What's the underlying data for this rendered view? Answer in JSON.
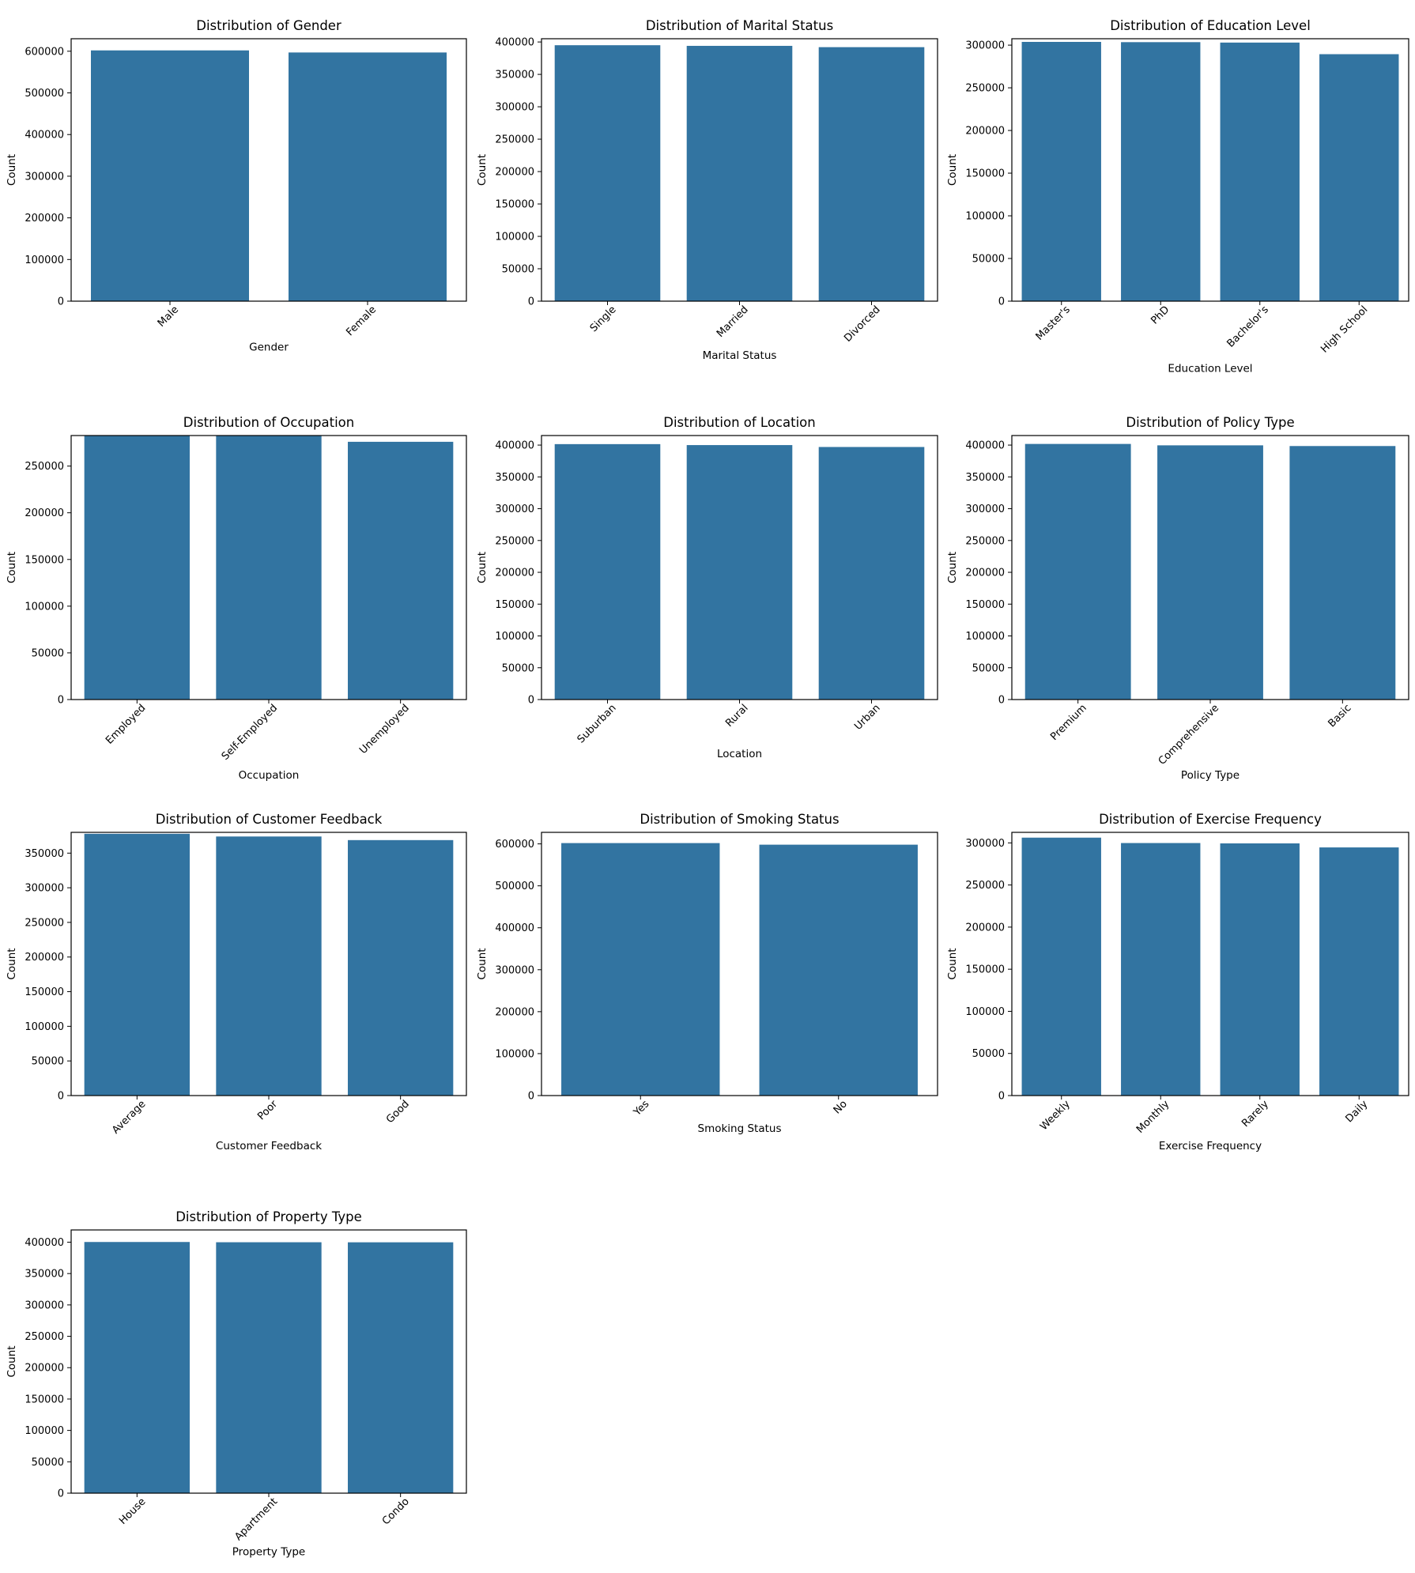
{
  "chart_data": [
    {
      "type": "bar",
      "title": "Distribution of Gender",
      "xlabel": "Gender",
      "ylabel": "Count",
      "categories": [
        "Male",
        "Female"
      ],
      "values": [
        602000,
        597000
      ],
      "ylim": [
        0,
        630000
      ],
      "yticks": [
        0,
        100000,
        200000,
        300000,
        400000,
        500000,
        600000
      ]
    },
    {
      "type": "bar",
      "title": "Distribution of Marital Status",
      "xlabel": "Marital Status",
      "ylabel": "Count",
      "categories": [
        "Single",
        "Married",
        "Divorced"
      ],
      "values": [
        395000,
        394000,
        392000
      ],
      "ylim": [
        0,
        405000
      ],
      "yticks": [
        0,
        50000,
        100000,
        150000,
        200000,
        250000,
        300000,
        350000,
        400000
      ]
    },
    {
      "type": "bar",
      "title": "Distribution of Education Level",
      "xlabel": "Education Level",
      "ylabel": "Count",
      "categories": [
        "Master's",
        "PhD",
        "Bachelor's",
        "High School"
      ],
      "values": [
        303800,
        303500,
        303000,
        289400
      ],
      "ylim": [
        0,
        307500
      ],
      "yticks": [
        0,
        50000,
        100000,
        150000,
        200000,
        250000,
        300000
      ]
    },
    {
      "type": "bar",
      "title": "Distribution of Occupation",
      "xlabel": "Occupation",
      "ylabel": "Count",
      "categories": [
        "Employed",
        "Self-Employed",
        "Unemployed"
      ],
      "values": [
        282700,
        282600,
        276000
      ],
      "ylim": [
        0,
        282700
      ],
      "yticks": [
        0,
        50000,
        100000,
        150000,
        200000,
        250000
      ]
    },
    {
      "type": "bar",
      "title": "Distribution of Location",
      "xlabel": "Location",
      "ylabel": "Count",
      "categories": [
        "Suburban",
        "Rural",
        "Urban"
      ],
      "values": [
        401500,
        400000,
        397000
      ],
      "ylim": [
        0,
        415000
      ],
      "yticks": [
        0,
        50000,
        100000,
        150000,
        200000,
        250000,
        300000,
        350000,
        400000
      ]
    },
    {
      "type": "bar",
      "title": "Distribution of Policy Type",
      "xlabel": "Policy Type",
      "ylabel": "Count",
      "categories": [
        "Premium",
        "Comprehensive",
        "Basic"
      ],
      "values": [
        401800,
        399600,
        398500
      ],
      "ylim": [
        0,
        415000
      ],
      "yticks": [
        0,
        50000,
        100000,
        150000,
        200000,
        250000,
        300000,
        350000,
        400000
      ]
    },
    {
      "type": "bar",
      "title": "Distribution of Customer Feedback",
      "xlabel": "Customer Feedback",
      "ylabel": "Count",
      "categories": [
        "Average",
        "Poor",
        "Good"
      ],
      "values": [
        377900,
        374000,
        368800
      ],
      "ylim": [
        0,
        380000
      ],
      "yticks": [
        0,
        50000,
        100000,
        150000,
        200000,
        250000,
        300000,
        350000
      ]
    },
    {
      "type": "bar",
      "title": "Distribution of Smoking Status",
      "xlabel": "Smoking Status",
      "ylabel": "Count",
      "categories": [
        "Yes",
        "No"
      ],
      "values": [
        601900,
        598100
      ],
      "ylim": [
        0,
        627500
      ],
      "yticks": [
        0,
        100000,
        200000,
        300000,
        400000,
        500000,
        600000
      ]
    },
    {
      "type": "bar",
      "title": "Distribution of Exercise Frequency",
      "xlabel": "Exercise Frequency",
      "ylabel": "Count",
      "categories": [
        "Weekly",
        "Monthly",
        "Rarely",
        "Daily"
      ],
      "values": [
        306200,
        299800,
        299400,
        294600
      ],
      "ylim": [
        0,
        312500
      ],
      "yticks": [
        0,
        50000,
        100000,
        150000,
        200000,
        250000,
        300000
      ]
    },
    {
      "type": "bar",
      "title": "Distribution of Property Type",
      "xlabel": "Property Type",
      "ylabel": "Count",
      "categories": [
        "House",
        "Apartment",
        "Condo"
      ],
      "values": [
        400300,
        399900,
        399800
      ],
      "ylim": [
        0,
        419500
      ],
      "yticks": [
        0,
        50000,
        100000,
        150000,
        200000,
        250000,
        300000,
        350000,
        400000
      ]
    }
  ],
  "style": {
    "bar_color": "#3274a1",
    "axis_color": "#000000"
  }
}
